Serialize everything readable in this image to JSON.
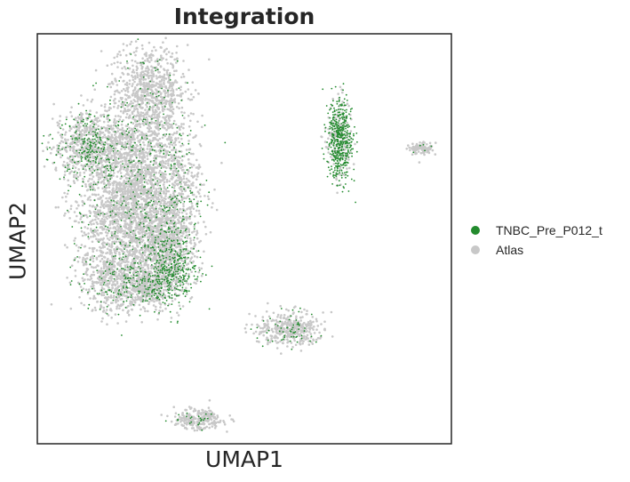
{
  "chart_data": {
    "type": "scatter",
    "title": "Integration",
    "xlabel": "UMAP1",
    "ylabel": "UMAP2",
    "ticks": "none",
    "grid": false,
    "legend_position": "right",
    "series": [
      {
        "name": "TNBC_Pre_P012_t",
        "color": "#238b2e"
      },
      {
        "name": "Atlas",
        "color": "#c8c8c8"
      }
    ],
    "xlim": [
      0,
      100
    ],
    "ylim": [
      0,
      100
    ],
    "clusters": [
      {
        "id": "main-top",
        "x": 27,
        "y": 85,
        "sx": 4.5,
        "sy": 6,
        "n": 900,
        "query_fraction": 0.08
      },
      {
        "id": "main-upper-left",
        "x": 12,
        "y": 73,
        "sx": 4,
        "sy": 4,
        "n": 700,
        "query_fraction": 0.3
      },
      {
        "id": "main-upper-mid",
        "x": 23,
        "y": 68,
        "sx": 6,
        "sy": 6,
        "n": 1100,
        "query_fraction": 0.14
      },
      {
        "id": "main-mid",
        "x": 22,
        "y": 55,
        "sx": 6,
        "sy": 6,
        "n": 1300,
        "query_fraction": 0.1
      },
      {
        "id": "main-right-strip",
        "x": 34,
        "y": 62,
        "sx": 3,
        "sy": 9,
        "n": 500,
        "query_fraction": 0.2
      },
      {
        "id": "main-lower-mid",
        "x": 30,
        "y": 50,
        "sx": 3.5,
        "sy": 4,
        "n": 500,
        "query_fraction": 0.12
      },
      {
        "id": "main-bottom-left",
        "x": 20,
        "y": 40,
        "sx": 5,
        "sy": 4,
        "n": 800,
        "query_fraction": 0.16
      },
      {
        "id": "main-bottom-right",
        "x": 32,
        "y": 42,
        "sx": 3,
        "sy": 4,
        "n": 600,
        "query_fraction": 0.55
      },
      {
        "id": "main-bottom-tail",
        "x": 27,
        "y": 38,
        "sx": 2.2,
        "sy": 2,
        "n": 250,
        "query_fraction": 0.1
      },
      {
        "id": "right-group",
        "x": 73,
        "y": 74,
        "sx": 1.5,
        "sy": 5,
        "n": 650,
        "query_fraction": 0.72
      },
      {
        "id": "far-right-small",
        "x": 93,
        "y": 72,
        "sx": 1.3,
        "sy": 0.7,
        "n": 120,
        "query_fraction": 0.04
      },
      {
        "id": "diagonal-lower",
        "x": 61,
        "y": 28,
        "sx": 4,
        "sy": 2,
        "n": 420,
        "query_fraction": 0.15
      },
      {
        "id": "bottom-small",
        "x": 39,
        "y": 6,
        "sx": 3,
        "sy": 1.2,
        "n": 260,
        "query_fraction": 0.06
      }
    ]
  }
}
